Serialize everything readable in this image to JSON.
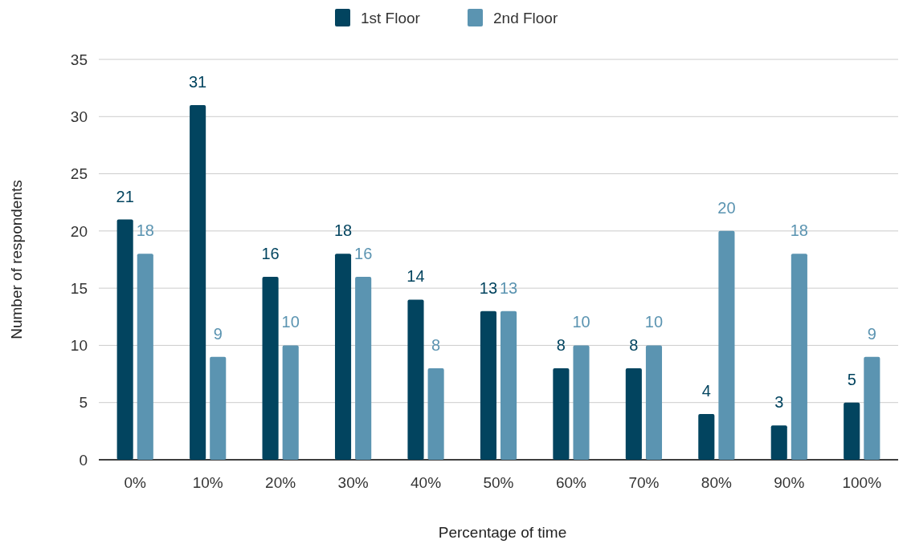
{
  "chart_data": {
    "type": "bar",
    "xlabel": "Percentage of time",
    "ylabel": "Number of respondents",
    "categories": [
      "0%",
      "10%",
      "20%",
      "30%",
      "40%",
      "50%",
      "60%",
      "70%",
      "80%",
      "90%",
      "100%"
    ],
    "series": [
      {
        "name": "1st Floor",
        "color": "#02445f",
        "values": [
          21,
          31,
          16,
          18,
          14,
          13,
          8,
          8,
          4,
          3,
          5
        ]
      },
      {
        "name": "2nd Floor",
        "color": "#5b94b1",
        "values": [
          18,
          9,
          10,
          16,
          8,
          13,
          10,
          10,
          20,
          18,
          9
        ]
      }
    ],
    "ylim": [
      0,
      35
    ],
    "yticks": [
      0,
      5,
      10,
      15,
      20,
      25,
      30,
      35
    ],
    "grid": "y",
    "legend": "top",
    "data_labels": true
  }
}
